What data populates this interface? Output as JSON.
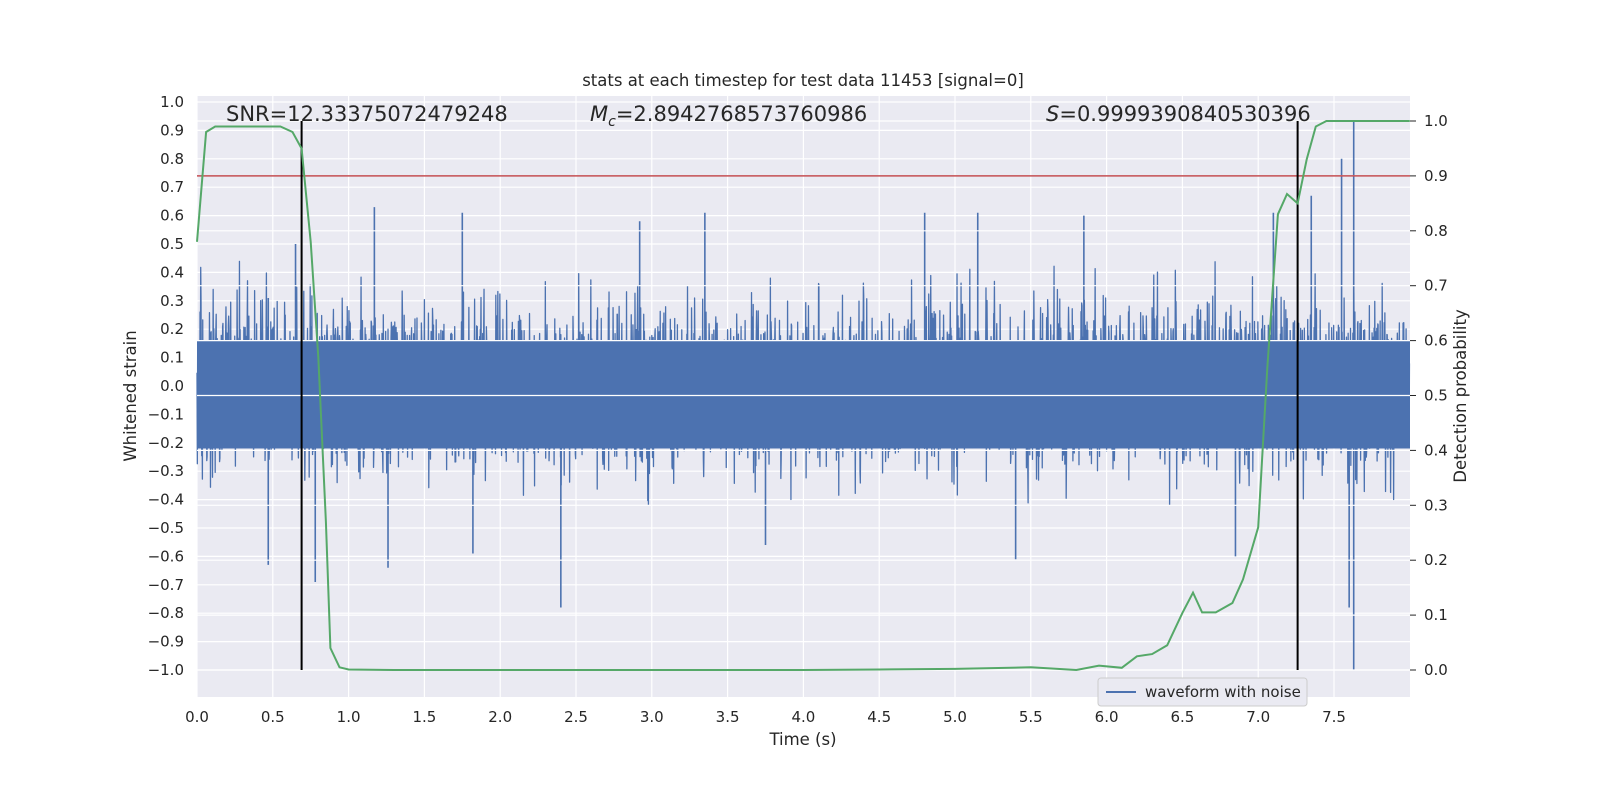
{
  "chart_data": {
    "type": "line",
    "title": "stats at each timestep for test data 11453 [signal=0]",
    "xlabel": "Time (s)",
    "ylabel": "Whitened strain",
    "y2label": "Detection probability",
    "xlim": [
      0.0,
      8.0
    ],
    "ylim": [
      -1.0,
      1.0
    ],
    "y2lim": [
      0.0,
      1.0
    ],
    "x_ticks": [
      0.0,
      0.5,
      1.0,
      1.5,
      2.0,
      2.5,
      3.0,
      3.5,
      4.0,
      4.5,
      5.0,
      5.5,
      6.0,
      6.5,
      7.0,
      7.5
    ],
    "x_tick_labels": [
      "0.0",
      "0.5",
      "1.0",
      "1.5",
      "2.0",
      "2.5",
      "3.0",
      "3.5",
      "4.0",
      "4.5",
      "5.0",
      "5.5",
      "6.0",
      "6.5",
      "7.0",
      "7.5"
    ],
    "y_ticks": [
      1.0,
      0.9,
      0.8,
      0.7,
      0.6,
      0.5,
      0.4,
      0.3,
      0.2,
      0.1,
      0.0,
      -0.1,
      -0.2,
      -0.3,
      -0.4,
      -0.5,
      -0.6,
      -0.7,
      -0.8,
      -0.9,
      -1.0
    ],
    "y_tick_labels": [
      "1.0",
      "0.9",
      "0.8",
      "0.7",
      "0.6",
      "0.5",
      "0.4",
      "0.3",
      "0.2",
      "0.1",
      "0.0",
      "−0.1",
      "−0.2",
      "−0.3",
      "−0.4",
      "−0.5",
      "−0.6",
      "−0.7",
      "−0.8",
      "−0.9",
      "−1.0"
    ],
    "y2_ticks": [
      1.0,
      0.9,
      0.8,
      0.7,
      0.6,
      0.5,
      0.4,
      0.3,
      0.2,
      0.1,
      0.0
    ],
    "y2_tick_labels": [
      "1.0",
      "0.9",
      "0.8",
      "0.7",
      "0.6",
      "0.5",
      "0.4",
      "0.3",
      "0.2",
      "0.1",
      "0.0"
    ],
    "grid": true,
    "legend": {
      "position": "lower-right",
      "entries": [
        "waveform with noise"
      ]
    },
    "annotations": {
      "snr": "SNR=12.33375072479248",
      "mc_symbol": "M",
      "mc_subscript": "c",
      "mc_value": "=2.8942768573760986",
      "s_symbol": "S",
      "s_value": "=0.9999390840530396"
    },
    "vertical_lines_x": [
      0.69,
      7.26
    ],
    "threshold_probability": 0.9,
    "series": [
      {
        "name": "waveform with noise",
        "axis": "left",
        "color": "#4c72b0",
        "style": "dense noisy waveform, core amplitude about ±0.3, peaks to about ±0.6",
        "peaks": [
          {
            "x": 0.47,
            "y": 0.31
          },
          {
            "x": 0.65,
            "y": 0.5
          },
          {
            "x": 1.17,
            "y": 0.63
          },
          {
            "x": 1.75,
            "y": 0.61
          },
          {
            "x": 2.92,
            "y": 0.58
          },
          {
            "x": 3.35,
            "y": 0.61
          },
          {
            "x": 4.8,
            "y": 0.61
          },
          {
            "x": 5.15,
            "y": 0.61
          },
          {
            "x": 5.85,
            "y": 0.6
          },
          {
            "x": 7.1,
            "y": 0.61
          },
          {
            "x": 7.35,
            "y": 0.67
          },
          {
            "x": 7.55,
            "y": 0.8
          },
          {
            "x": 7.63,
            "y": 0.93
          },
          {
            "x": 0.47,
            "y": -0.63
          },
          {
            "x": 0.78,
            "y": -0.69
          },
          {
            "x": 1.26,
            "y": -0.64
          },
          {
            "x": 2.4,
            "y": -0.78
          },
          {
            "x": 1.82,
            "y": -0.59
          },
          {
            "x": 3.75,
            "y": -0.56
          },
          {
            "x": 5.4,
            "y": -0.61
          },
          {
            "x": 6.85,
            "y": -0.6
          },
          {
            "x": 7.63,
            "y": -1.0
          },
          {
            "x": 7.6,
            "y": -0.78
          }
        ]
      },
      {
        "name": "detection probability",
        "axis": "right",
        "color": "#55a868",
        "points": [
          [
            0.0,
            0.78
          ],
          [
            0.06,
            0.98
          ],
          [
            0.12,
            0.99
          ],
          [
            0.3,
            0.99
          ],
          [
            0.55,
            0.99
          ],
          [
            0.63,
            0.98
          ],
          [
            0.69,
            0.95
          ],
          [
            0.75,
            0.78
          ],
          [
            0.8,
            0.57
          ],
          [
            0.85,
            0.27
          ],
          [
            0.88,
            0.04
          ],
          [
            0.94,
            0.005
          ],
          [
            1.0,
            0.001
          ],
          [
            1.3,
            0.0
          ],
          [
            2.0,
            0.0
          ],
          [
            3.0,
            0.0
          ],
          [
            4.0,
            0.0
          ],
          [
            4.5,
            0.001
          ],
          [
            5.0,
            0.002
          ],
          [
            5.5,
            0.005
          ],
          [
            5.8,
            0.0
          ],
          [
            5.95,
            0.008
          ],
          [
            6.1,
            0.004
          ],
          [
            6.2,
            0.025
          ],
          [
            6.3,
            0.029
          ],
          [
            6.4,
            0.045
          ],
          [
            6.5,
            0.104
          ],
          [
            6.57,
            0.141
          ],
          [
            6.63,
            0.105
          ],
          [
            6.72,
            0.105
          ],
          [
            6.83,
            0.122
          ],
          [
            6.9,
            0.165
          ],
          [
            7.0,
            0.26
          ],
          [
            7.06,
            0.55
          ],
          [
            7.13,
            0.83
          ],
          [
            7.19,
            0.867
          ],
          [
            7.26,
            0.85
          ],
          [
            7.32,
            0.93
          ],
          [
            7.38,
            0.99
          ],
          [
            7.45,
            1.0
          ],
          [
            8.0,
            1.0
          ]
        ]
      }
    ]
  }
}
